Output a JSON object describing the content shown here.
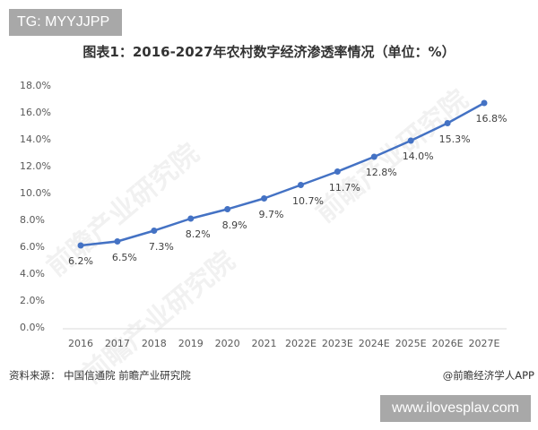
{
  "badges": {
    "top": "TG: MYYJJPP",
    "bottom": "www.ilovesplav.com"
  },
  "header": {
    "title": "图表1：2016-2027年农村数字经济渗透率情况（单位：%）"
  },
  "footer": {
    "source": "资料来源： 中国信通院 前瞻产业研究院",
    "credit": "@前瞻经济学人APP"
  },
  "watermark": {
    "text": "前瞻产业研究院"
  },
  "chart_data": {
    "type": "line",
    "title": "图表1：2016-2027年农村数字经济渗透率情况（单位：%）",
    "xlabel": "",
    "ylabel": "",
    "categories": [
      "2016",
      "2017",
      "2018",
      "2019",
      "2020",
      "2021",
      "2022E",
      "2023E",
      "2024E",
      "2025E",
      "2026E",
      "2027E"
    ],
    "series": [
      {
        "name": "农村数字经济渗透率",
        "values": [
          6.2,
          6.5,
          7.3,
          8.2,
          8.9,
          9.7,
          10.7,
          11.7,
          12.8,
          14.0,
          15.3,
          16.8
        ],
        "labels": [
          "6.2%",
          "6.5%",
          "7.3%",
          "8.2%",
          "8.9%",
          "9.7%",
          "10.7%",
          "11.7%",
          "12.8%",
          "14.0%",
          "15.3%",
          "16.8%"
        ],
        "color": "#4472c4"
      }
    ],
    "ylim": [
      0,
      18
    ],
    "yticks": [
      "18.0%",
      "16.0%",
      "14.0%",
      "12.0%",
      "10.0%",
      "8.0%",
      "6.0%",
      "4.0%",
      "2.0%",
      "0.0%"
    ],
    "grid": false,
    "legend": "none"
  }
}
